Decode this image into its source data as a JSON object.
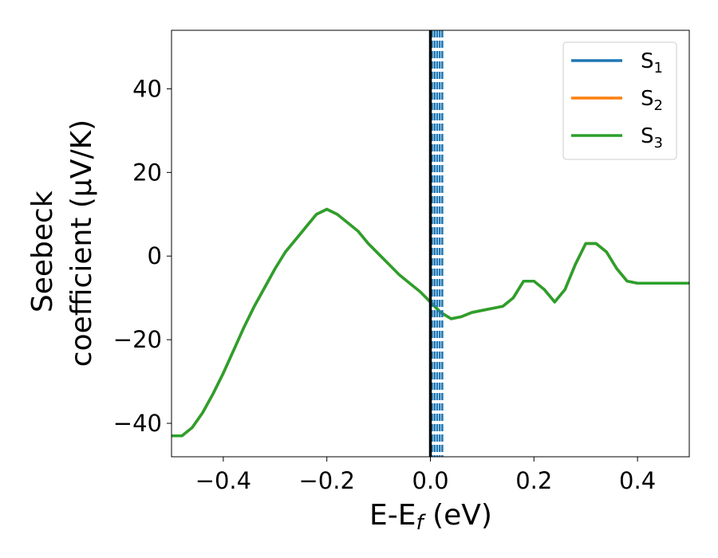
{
  "chart_data": {
    "type": "line",
    "xlabel": {
      "main": "E-E",
      "sub": "f",
      "unit": " (eV)"
    },
    "ylabel": {
      "line1": "Seebeck",
      "line2": "coefficient  (μV/K)"
    },
    "xlim": [
      -0.5,
      0.5
    ],
    "ylim": [
      -48,
      54
    ],
    "xticks": [
      -0.4,
      -0.2,
      0.0,
      0.2,
      0.4
    ],
    "xtick_labels": [
      "−0.4",
      "−0.2",
      "0.0",
      "0.2",
      "0.4"
    ],
    "yticks": [
      -40,
      -20,
      0,
      20,
      40
    ],
    "ytick_labels": [
      "−40",
      "−20",
      "0",
      "20",
      "40"
    ],
    "grid": false,
    "legend_position": "top-right",
    "reference_line": {
      "x": 0.0,
      "color": "#000000"
    },
    "dashed_lines": {
      "x": [
        0.003,
        0.008,
        0.013,
        0.018,
        0.023
      ],
      "color": "#1f77b4"
    },
    "x": [
      -0.5,
      -0.48,
      -0.46,
      -0.44,
      -0.42,
      -0.4,
      -0.38,
      -0.36,
      -0.34,
      -0.32,
      -0.3,
      -0.28,
      -0.26,
      -0.24,
      -0.22,
      -0.2,
      -0.18,
      -0.16,
      -0.14,
      -0.12,
      -0.1,
      -0.08,
      -0.06,
      -0.04,
      -0.02,
      0.0,
      0.02,
      0.04,
      0.06,
      0.08,
      0.1,
      0.12,
      0.14,
      0.16,
      0.18,
      0.2,
      0.22,
      0.24,
      0.26,
      0.28,
      0.3,
      0.32,
      0.34,
      0.36,
      0.38,
      0.4,
      0.42,
      0.44,
      0.46,
      0.48,
      0.5
    ],
    "series": [
      {
        "name_base": "S",
        "name_sub": "1",
        "color": "#1f77b4",
        "values": [
          -43.0,
          -43.0,
          -41.0,
          -37.5,
          -33.0,
          -28.0,
          -22.5,
          -17.0,
          -12.0,
          -7.5,
          -3.0,
          1.0,
          4.0,
          7.0,
          10.0,
          11.2,
          10.0,
          8.0,
          6.0,
          3.0,
          0.5,
          -2.0,
          -4.5,
          -6.5,
          -8.5,
          -11.0,
          -13.5,
          -15.0,
          -14.5,
          -13.5,
          -13.0,
          -12.5,
          -12.0,
          -10.0,
          -6.0,
          -6.0,
          -8.0,
          -11.0,
          -8.0,
          -2.0,
          3.0,
          3.0,
          1.0,
          -3.0,
          -6.0,
          -6.5,
          -6.5,
          -6.5,
          -6.5,
          -6.5,
          -6.5
        ]
      },
      {
        "name_base": "S",
        "name_sub": "2",
        "color": "#ff7f0e",
        "values": [
          -43.0,
          -43.0,
          -41.0,
          -37.5,
          -33.0,
          -28.0,
          -22.5,
          -17.0,
          -12.0,
          -7.5,
          -3.0,
          1.0,
          4.0,
          7.0,
          10.0,
          11.2,
          10.0,
          8.0,
          6.0,
          3.0,
          0.5,
          -2.0,
          -4.5,
          -6.5,
          -8.5,
          -11.0,
          -13.5,
          -15.0,
          -14.5,
          -13.5,
          -13.0,
          -12.5,
          -12.0,
          -10.0,
          -6.0,
          -6.0,
          -8.0,
          -11.0,
          -8.0,
          -2.0,
          3.0,
          3.0,
          1.0,
          -3.0,
          -6.0,
          -6.5,
          -6.5,
          -6.5,
          -6.5,
          -6.5,
          -6.5
        ]
      },
      {
        "name_base": "S",
        "name_sub": "3",
        "color": "#2ca02c",
        "values": [
          -43.0,
          -43.0,
          -41.0,
          -37.5,
          -33.0,
          -28.0,
          -22.5,
          -17.0,
          -12.0,
          -7.5,
          -3.0,
          1.0,
          4.0,
          7.0,
          10.0,
          11.2,
          10.0,
          8.0,
          6.0,
          3.0,
          0.5,
          -2.0,
          -4.5,
          -6.5,
          -8.5,
          -11.0,
          -13.5,
          -15.0,
          -14.5,
          -13.5,
          -13.0,
          -12.5,
          -12.0,
          -10.0,
          -6.0,
          -6.0,
          -8.0,
          -11.0,
          -8.0,
          -2.0,
          3.0,
          3.0,
          1.0,
          -3.0,
          -6.0,
          -6.5,
          -6.5,
          -6.5,
          -6.5,
          -6.5,
          -6.5
        ]
      }
    ]
  }
}
